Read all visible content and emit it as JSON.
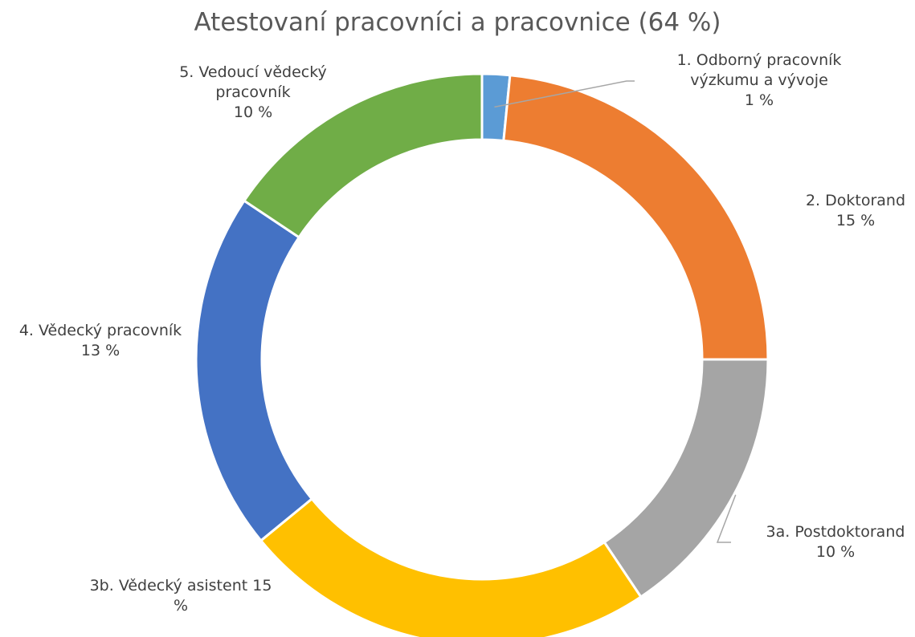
{
  "chart_data": {
    "type": "pie",
    "title": "Atestovaní pracovníci a pracovnice (64 %)",
    "categories": [
      "1. Odborný pracovník výzkumu a vývoje",
      "2. Doktorand",
      "3a. Postdoktorand",
      "3b. Vědecký asistent",
      "4. Vědecký pracovník",
      "5. Vedoucí vědecký pracovník"
    ],
    "values": [
      1,
      15,
      10,
      15,
      13,
      10
    ],
    "value_labels": [
      "1 %",
      "15 %",
      "10 %",
      "15 %",
      "13 %",
      "10 %"
    ],
    "label_lines": [
      [
        "1. Odborný pracovník",
        "výzkumu a vývoje",
        "1 %"
      ],
      [
        "2. Doktorand",
        "15 %"
      ],
      [
        "3a. Postdoktorand",
        "10 %"
      ],
      [
        "3b. Vědecký asistent 15",
        "%"
      ],
      [
        "4. Vědecký pracovník",
        "13 %"
      ],
      [
        "5. Vedoucí vědecký",
        "pracovník",
        "10 %"
      ]
    ],
    "colors": [
      "#5B9BD5",
      "#ED7D31",
      "#A5A5A5",
      "#FFC000",
      "#4472C4",
      "#70AD47"
    ],
    "style": "doughnut",
    "legend": "none"
  }
}
